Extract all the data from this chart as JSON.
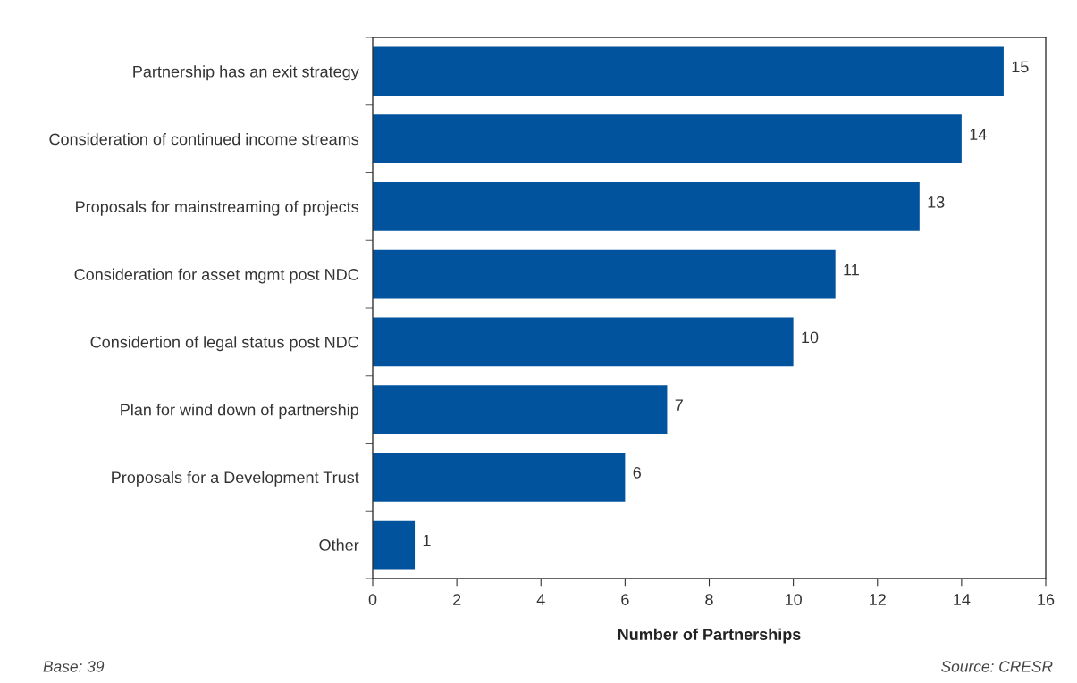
{
  "chart_data": {
    "type": "bar",
    "orientation": "horizontal",
    "categories": [
      "Partnership has an exit strategy",
      "Consideration of continued income streams",
      "Proposals for mainstreaming of projects",
      "Consideration for asset mgmt post NDC",
      "Considertion of legal status post NDC",
      "Plan for wind down of partnership",
      "Proposals for a Development Trust",
      "Other"
    ],
    "values": [
      15,
      14,
      13,
      11,
      10,
      7,
      6,
      1
    ],
    "color": "#02539e",
    "xlim": [
      0,
      16
    ],
    "xticks": [
      0,
      2,
      4,
      6,
      8,
      10,
      12,
      14,
      16
    ],
    "xlabel": "Number of Partnerships",
    "data_labels": true,
    "annotations": [
      "Base: 39",
      "Source: CRESR"
    ]
  }
}
